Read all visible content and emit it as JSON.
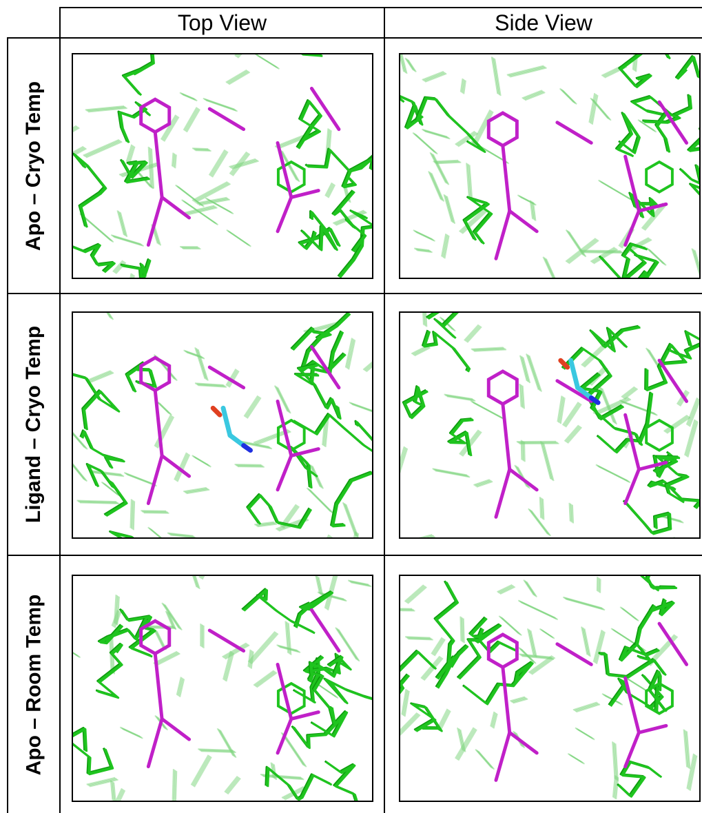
{
  "columns": [
    "Top View",
    "Side View"
  ],
  "rows": [
    "Apo – Cryo Temp",
    "Ligand – Cryo Temp",
    "Apo – Room Temp"
  ]
}
